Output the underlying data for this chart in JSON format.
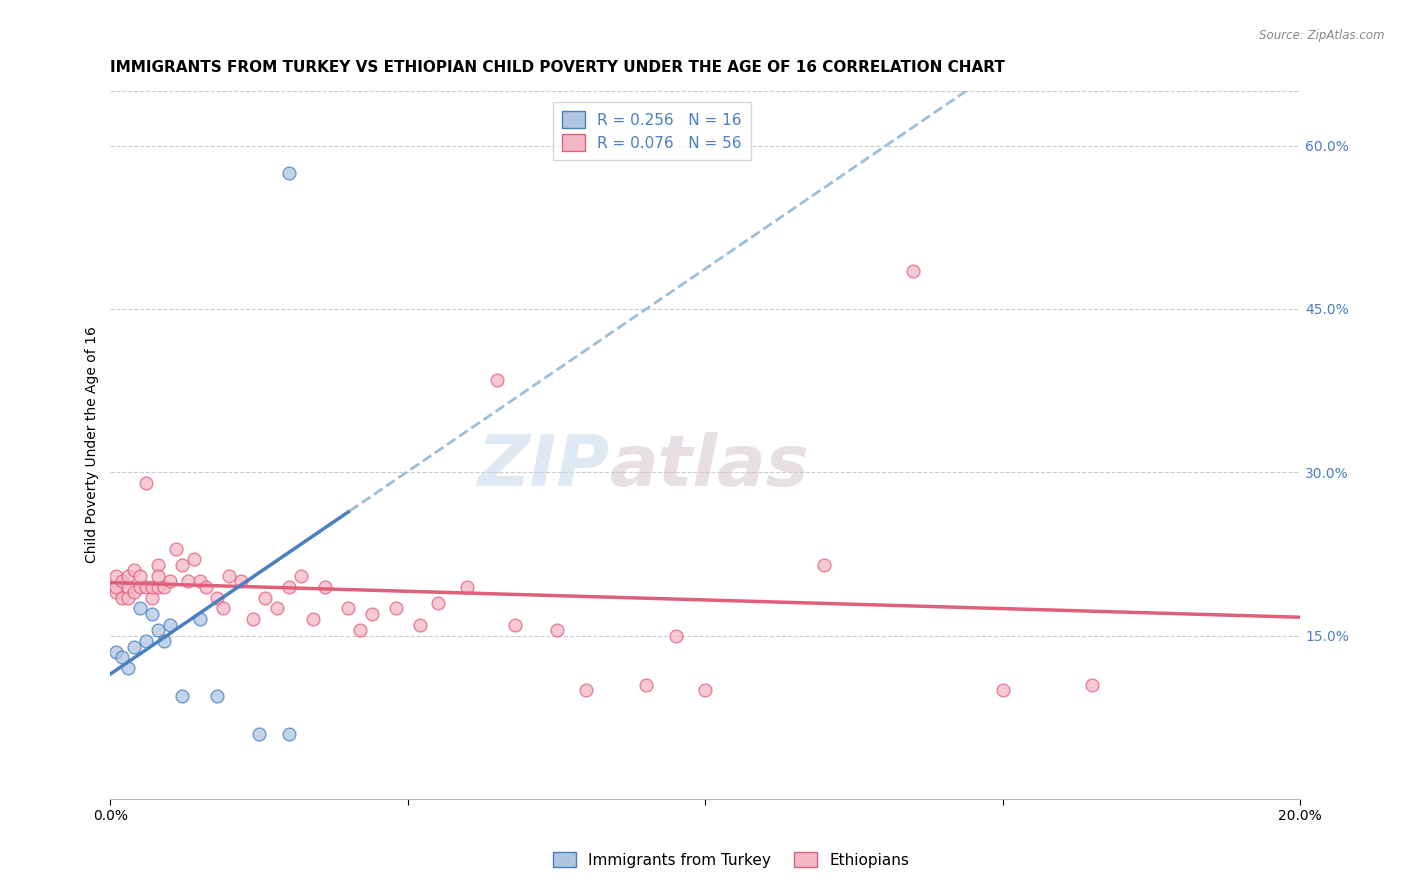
{
  "title": "IMMIGRANTS FROM TURKEY VS ETHIOPIAN CHILD POVERTY UNDER THE AGE OF 16 CORRELATION CHART",
  "source": "Source: ZipAtlas.com",
  "ylabel": "Child Poverty Under the Age of 16",
  "r_turkey": 0.256,
  "n_turkey": 16,
  "r_ethiopian": 0.076,
  "n_ethiopian": 56,
  "turkey_color": "#aec6df",
  "ethiopian_color": "#f5b8c8",
  "turkey_line_color": "#4a7fc1",
  "ethiopian_line_color": "#e0607a",
  "dashed_line_color": "#8ab4d4",
  "watermark_zip": "ZIP",
  "watermark_atlas": "atlas",
  "xlim": [
    0.0,
    0.2
  ],
  "ylim": [
    0.0,
    0.65
  ],
  "right_yticks": [
    0.15,
    0.3,
    0.45,
    0.6
  ],
  "xticks": [
    0.0,
    0.05,
    0.1,
    0.15,
    0.2
  ],
  "turkey_scatter_x": [
    0.001,
    0.002,
    0.003,
    0.004,
    0.005,
    0.006,
    0.007,
    0.008,
    0.009,
    0.01,
    0.012,
    0.015,
    0.018,
    0.025,
    0.03,
    0.03
  ],
  "turkey_scatter_y": [
    0.135,
    0.13,
    0.12,
    0.14,
    0.175,
    0.145,
    0.17,
    0.155,
    0.145,
    0.16,
    0.095,
    0.165,
    0.095,
    0.06,
    0.06,
    0.575
  ],
  "ethiopian_scatter_x": [
    0.001,
    0.001,
    0.001,
    0.002,
    0.002,
    0.003,
    0.003,
    0.003,
    0.004,
    0.004,
    0.005,
    0.005,
    0.006,
    0.006,
    0.007,
    0.007,
    0.008,
    0.008,
    0.008,
    0.009,
    0.01,
    0.011,
    0.012,
    0.013,
    0.014,
    0.015,
    0.016,
    0.018,
    0.019,
    0.02,
    0.022,
    0.024,
    0.026,
    0.028,
    0.03,
    0.032,
    0.034,
    0.036,
    0.04,
    0.042,
    0.044,
    0.048,
    0.052,
    0.055,
    0.06,
    0.065,
    0.068,
    0.075,
    0.08,
    0.09,
    0.095,
    0.1,
    0.12,
    0.135,
    0.15,
    0.165
  ],
  "ethiopian_scatter_y": [
    0.19,
    0.195,
    0.205,
    0.185,
    0.2,
    0.195,
    0.205,
    0.185,
    0.19,
    0.21,
    0.195,
    0.205,
    0.195,
    0.29,
    0.185,
    0.195,
    0.195,
    0.215,
    0.205,
    0.195,
    0.2,
    0.23,
    0.215,
    0.2,
    0.22,
    0.2,
    0.195,
    0.185,
    0.175,
    0.205,
    0.2,
    0.165,
    0.185,
    0.175,
    0.195,
    0.205,
    0.165,
    0.195,
    0.175,
    0.155,
    0.17,
    0.175,
    0.16,
    0.18,
    0.195,
    0.385,
    0.16,
    0.155,
    0.1,
    0.105,
    0.15,
    0.1,
    0.215,
    0.485,
    0.1,
    0.105
  ],
  "legend_label_turkey": "Immigrants from Turkey",
  "legend_label_ethiopian": "Ethiopians",
  "title_fontsize": 11,
  "label_fontsize": 10,
  "tick_fontsize": 10,
  "legend_fontsize": 11,
  "marker_size": 85
}
